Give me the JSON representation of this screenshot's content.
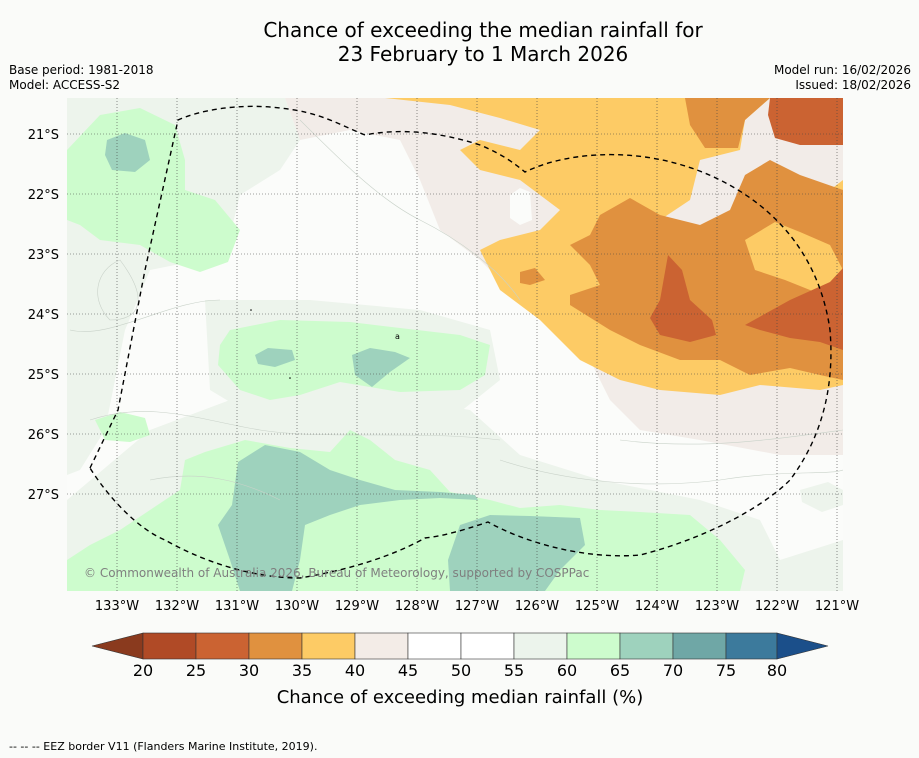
{
  "title": {
    "line1": "Chance of exceeding the median rainfall for",
    "line2": "23 February to 1 March 2026"
  },
  "meta": {
    "base_period": "Base period: 1981-2018",
    "model": "Model: ACCESS-S2",
    "model_run": "Model run: 16/02/2026",
    "issued": "Issued: 18/02/2026"
  },
  "map": {
    "lat_labels": [
      "21°S",
      "22°S",
      "23°S",
      "24°S",
      "25°S",
      "26°S",
      "27°S"
    ],
    "lon_labels": [
      "133°W",
      "132°W",
      "131°W",
      "130°W",
      "129°W",
      "128°W",
      "127°W",
      "126°W",
      "125°W",
      "124°W",
      "123°W",
      "122°W",
      "121°W"
    ],
    "copyright": "© Commonwealth of Australia 2026, Bureau of Meteorology, supported by COSPPac",
    "contour_label": "a"
  },
  "colorbar": {
    "ticks": [
      "20",
      "25",
      "30",
      "35",
      "40",
      "45",
      "50",
      "55",
      "60",
      "65",
      "70",
      "75",
      "80"
    ],
    "colors": [
      "#8a3a1e",
      "#b04a26",
      "#cb6332",
      "#e0913f",
      "#fdcb65",
      "#f3ece7",
      "#ffffff",
      "#ffffff",
      "#ecf4ec",
      "#cdfccd",
      "#9ed2bd",
      "#6fa7a6",
      "#3c7a9c",
      "#1b4f8a"
    ],
    "title": "Chance of exceeding median rainfall (%)"
  },
  "footnote": "--  --  -- EEZ border V11 (Flanders Marine Institute, 2019)."
}
